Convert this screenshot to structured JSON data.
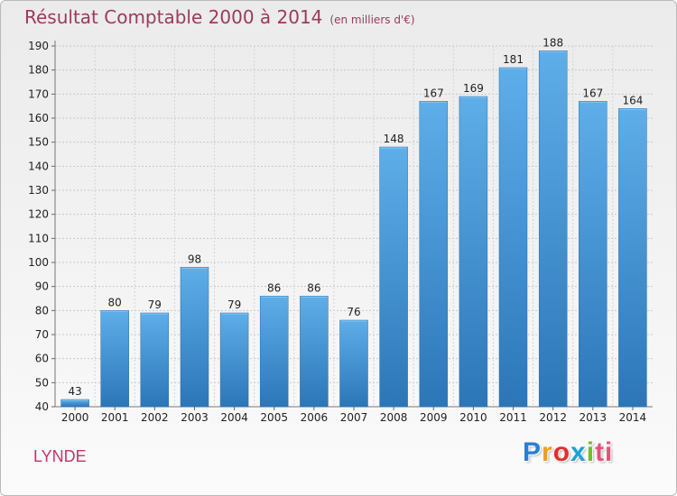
{
  "chart_data": {
    "type": "bar",
    "title": "Résultat Comptable 2000 à 2014",
    "subtitle": "(en milliers d'€)",
    "categories": [
      "2000",
      "2001",
      "2002",
      "2003",
      "2004",
      "2005",
      "2006",
      "2007",
      "2008",
      "2009",
      "2010",
      "2011",
      "2012",
      "2013",
      "2014"
    ],
    "values": [
      43,
      80,
      79,
      98,
      79,
      86,
      86,
      76,
      148,
      167,
      169,
      181,
      188,
      167,
      164
    ],
    "ylim": [
      40,
      190
    ],
    "yticks": [
      40,
      50,
      60,
      70,
      80,
      90,
      100,
      110,
      120,
      130,
      140,
      150,
      160,
      170,
      180,
      190
    ],
    "grid": true,
    "xlabel": "",
    "ylabel": "",
    "bar_color": "#3a8fd6"
  },
  "commune": "LYNDE",
  "logo": {
    "letters": [
      "P",
      "r",
      "o",
      "x",
      "i",
      "ti"
    ]
  }
}
